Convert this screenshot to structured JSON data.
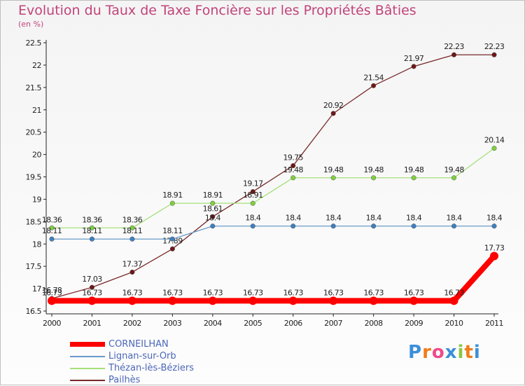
{
  "chart_data": {
    "type": "line",
    "title": "Evolution du Taux de Taxe Foncière sur les Propriétés Bâties",
    "unit_label": "(en %)",
    "x": [
      "2000",
      "2001",
      "2002",
      "2003",
      "2004",
      "2005",
      "2006",
      "2007",
      "2008",
      "2009",
      "2010",
      "2011"
    ],
    "ylim": [
      16.5,
      22.5
    ],
    "yticks": [
      "16.5",
      "17",
      "17.5",
      "18",
      "18.5",
      "19",
      "19.5",
      "20",
      "20.5",
      "21",
      "21.5",
      "22",
      "22.5"
    ],
    "grid": false,
    "legend_position": "bottom-left",
    "series": [
      {
        "name": "Pailhès",
        "color": "#7a2a2a",
        "marker": "#6e1818",
        "values": [
          16.78,
          17.03,
          17.37,
          17.89,
          18.61,
          19.17,
          19.75,
          20.92,
          21.54,
          21.97,
          22.23,
          22.23
        ],
        "labels": [
          "16.78",
          "17.03",
          "17.37",
          "17.89",
          "18.61",
          "19.17",
          "19.75",
          "20.92",
          "21.54",
          "21.97",
          "22.23",
          "22.23"
        ]
      },
      {
        "name": "Thézan-lès-Béziers",
        "color": "#a6e07a",
        "marker": "#7fcf3f",
        "values": [
          18.36,
          18.36,
          18.36,
          18.91,
          18.91,
          18.91,
          19.48,
          19.48,
          19.48,
          19.48,
          19.48,
          20.14
        ],
        "labels": [
          "18.36",
          "18.36",
          "18.36",
          "18.91",
          "18.91",
          "18.91",
          "19.48",
          "19.48",
          "19.48",
          "19.48",
          "19.48",
          "20.14"
        ]
      },
      {
        "name": "Lignan-sur-Orb",
        "color": "#6a9ac9",
        "marker": "#3f7fbf",
        "values": [
          18.11,
          18.11,
          18.11,
          18.11,
          18.4,
          18.4,
          18.4,
          18.4,
          18.4,
          18.4,
          18.4,
          18.4
        ],
        "labels": [
          "18.11",
          "18.11",
          "18.11",
          "18.11",
          "18.4",
          "18.4",
          "18.4",
          "18.4",
          "18.4",
          "18.4",
          "18.4",
          "18.4"
        ]
      },
      {
        "name": "CORNEILHAN",
        "color": "#ff0000",
        "marker": "#ff0000",
        "values": [
          16.73,
          16.73,
          16.73,
          16.73,
          16.73,
          16.73,
          16.73,
          16.73,
          16.73,
          16.73,
          16.73,
          17.73
        ],
        "labels": [
          "16.73",
          "16.73",
          "16.73",
          "16.73",
          "16.73",
          "16.73",
          "16.73",
          "16.73",
          "16.73",
          "16.73",
          "16.73",
          "17.73"
        ]
      }
    ],
    "legend": [
      {
        "name": "CORNEILHAN",
        "color": "#ff0000"
      },
      {
        "name": "Lignan-sur-Orb",
        "color": "#6a9ac9"
      },
      {
        "name": "Thézan-lès-Béziers",
        "color": "#a6e07a"
      },
      {
        "name": "Pailhès",
        "color": "#7a2a2a"
      }
    ]
  },
  "logo": {
    "text": "Proxiti",
    "letters": [
      "P",
      "r",
      "o",
      "x",
      "i",
      "t",
      "i"
    ],
    "colors": [
      "#3b8fd9",
      "#f07d1a",
      "#ef4a8a",
      "#3b8fd9",
      "#8cc63f",
      "#f07d1a",
      "#3b8fd9"
    ]
  }
}
